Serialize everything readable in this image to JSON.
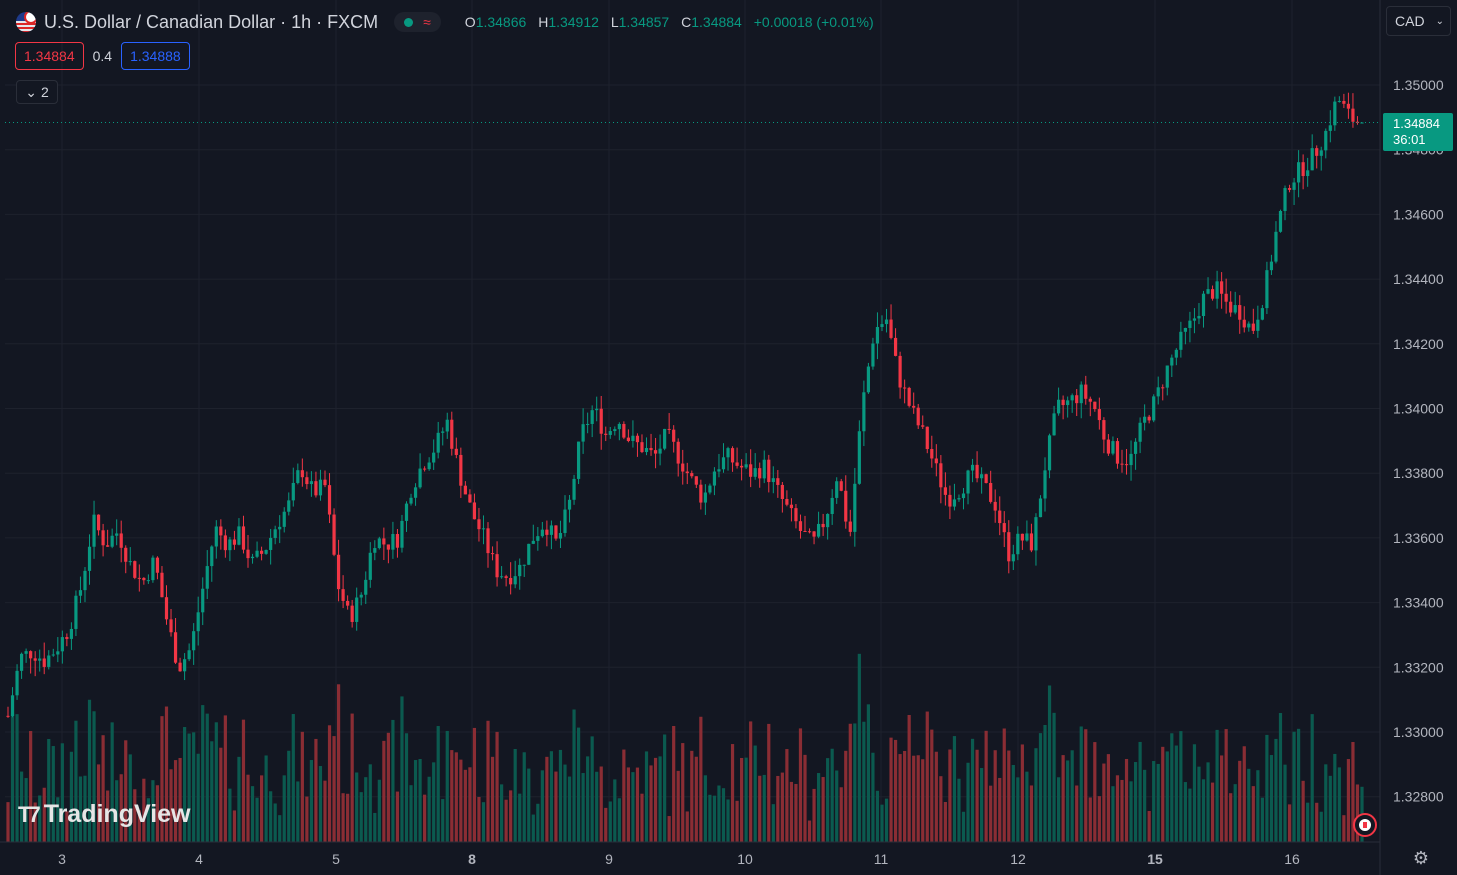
{
  "header": {
    "title": "U.S. Dollar / Canadian Dollar · 1h · FXCM",
    "ohlc": [
      {
        "key": "O",
        "value": "1.34866"
      },
      {
        "key": "H",
        "value": "1.34912"
      },
      {
        "key": "L",
        "value": "1.34857"
      },
      {
        "key": "C",
        "value": "1.34884"
      }
    ],
    "change": "+0.00018 (+0.01%)"
  },
  "trade": {
    "sell": "1.34884",
    "spread": "0.4",
    "buy": "1.34888"
  },
  "indicators_toggle": {
    "count": "2"
  },
  "currency_select": {
    "value": "CAD"
  },
  "last_price": {
    "price": "1.34884",
    "countdown": "36:01"
  },
  "logo": {
    "text": "TradingView"
  },
  "colors": {
    "up": "#089981",
    "down": "#f23645",
    "background": "#131722",
    "grid": "#1e222d"
  },
  "icons": [
    "usd-cad-flag-icon",
    "chevron-down-icon",
    "canada-flag-event-icon",
    "settings-icon"
  ],
  "chart_data": {
    "type": "candlestick",
    "x_labels": [
      "3",
      "4",
      "5",
      "8",
      "9",
      "10",
      "11",
      "12",
      "15",
      "16"
    ],
    "y_ticks": [
      "1.35000",
      "1.34800",
      "1.34600",
      "1.34400",
      "1.34200",
      "1.34000",
      "1.33800",
      "1.33600",
      "1.33400",
      "1.33200",
      "1.33000",
      "1.32800"
    ],
    "ylim": [
      1.327,
      1.3525
    ],
    "last_price": 1.34884,
    "close_path": [
      1.3305,
      1.3323,
      1.3325,
      1.3322,
      1.3326,
      1.3332,
      1.3345,
      1.3365,
      1.3358,
      1.3362,
      1.3352,
      1.3346,
      1.3353,
      1.3335,
      1.332,
      1.3326,
      1.3345,
      1.3363,
      1.3358,
      1.3361,
      1.3352,
      1.3356,
      1.3364,
      1.337,
      1.3382,
      1.3374,
      1.3376,
      1.3346,
      1.3335,
      1.3343,
      1.336,
      1.3358,
      1.336,
      1.3375,
      1.3383,
      1.3388,
      1.3396,
      1.338,
      1.3368,
      1.336,
      1.335,
      1.3348,
      1.3351,
      1.336,
      1.3365,
      1.3358,
      1.337,
      1.3392,
      1.34,
      1.3392,
      1.3397,
      1.339,
      1.3388,
      1.3385,
      1.3392,
      1.3385,
      1.3378,
      1.3372,
      1.3382,
      1.3385,
      1.3382,
      1.338,
      1.3382,
      1.3375,
      1.3368,
      1.3362,
      1.3358,
      1.3366,
      1.338,
      1.336,
      1.34,
      1.3424,
      1.3428,
      1.341,
      1.34,
      1.3392,
      1.3382,
      1.3372,
      1.3375,
      1.338,
      1.3376,
      1.337,
      1.3355,
      1.336,
      1.3358,
      1.3382,
      1.34,
      1.3402,
      1.3405,
      1.3401,
      1.339,
      1.3385,
      1.3384,
      1.3395,
      1.3402,
      1.3412,
      1.342,
      1.3426,
      1.3434,
      1.3437,
      1.3432,
      1.343,
      1.3424,
      1.3436,
      1.3455,
      1.347,
      1.3474,
      1.3478,
      1.3485,
      1.3496,
      1.349,
      1.3488
    ]
  }
}
